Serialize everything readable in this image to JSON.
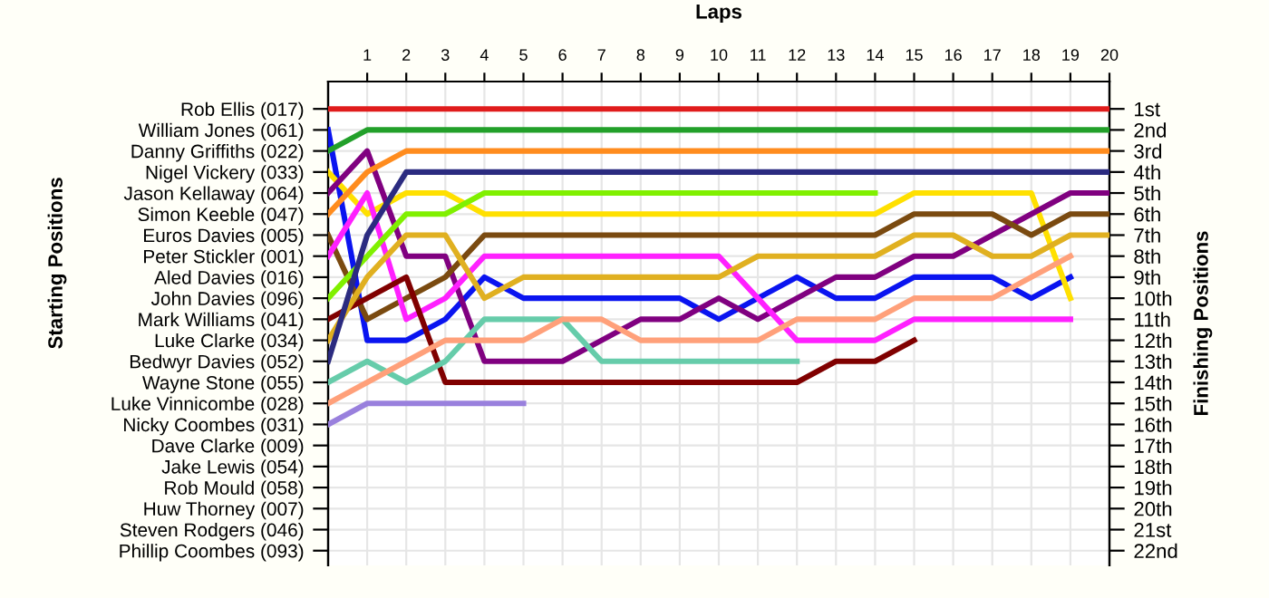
{
  "chart_data": {
    "type": "line",
    "xlabel": "Laps",
    "annotations": [
      "Starting Positions"
    ],
    "y2label": "Finishing Positions",
    "x": [
      0,
      1,
      2,
      3,
      4,
      5,
      6,
      7,
      8,
      9,
      10,
      11,
      12,
      13,
      14,
      15,
      16,
      17,
      18,
      19,
      20
    ],
    "xlim": [
      0,
      20
    ],
    "xticks": [
      1,
      2,
      3,
      4,
      5,
      6,
      7,
      8,
      9,
      10,
      11,
      12,
      13,
      14,
      15,
      16,
      17,
      18,
      19,
      20
    ],
    "y2lim": [
      22.7,
      -0.3
    ],
    "y_categories": [
      "Rob Ellis (017)",
      "William Jones (061)",
      "Danny Griffiths (022)",
      "Nigel Vickery (033)",
      "Jason Kellaway (064)",
      "Simon Keeble (047)",
      "Euros Davies (005)",
      "Peter Stickler (001)",
      "Aled Davies (016)",
      "John Davies (096)",
      "Mark Williams (041)",
      "Luke Clarke (034)",
      "Bedwyr Davies (052)",
      "Wayne Stone (055)",
      "Luke Vinnicombe (028)",
      "Nicky Coombes (031)",
      "Dave Clarke (009)",
      "Jake Lewis (054)",
      "Rob Mould (058)",
      "Huw Thorney (007)",
      "Steven Rodgers (046)",
      "Phillip Coombes (093)"
    ],
    "y2ticks": [
      {
        "value": 1,
        "label": "1st"
      },
      {
        "value": 2,
        "label": "2nd"
      },
      {
        "value": 3,
        "label": "3rd"
      },
      {
        "value": 4,
        "label": "4th"
      },
      {
        "value": 5,
        "label": "5th"
      },
      {
        "value": 6,
        "label": "6th"
      },
      {
        "value": 7,
        "label": "7th"
      },
      {
        "value": 8,
        "label": "8th"
      },
      {
        "value": 9,
        "label": "9th"
      },
      {
        "value": 10,
        "label": "10th"
      },
      {
        "value": 11,
        "label": "11th"
      },
      {
        "value": 12,
        "label": "12th"
      },
      {
        "value": 13,
        "label": "13th"
      },
      {
        "value": 14,
        "label": "14th"
      },
      {
        "value": 15,
        "label": "15th"
      },
      {
        "value": 16,
        "label": "16th"
      },
      {
        "value": 17,
        "label": "17th"
      },
      {
        "value": 18,
        "label": "18th"
      },
      {
        "value": 19,
        "label": "19th"
      },
      {
        "value": 20,
        "label": "20th"
      },
      {
        "value": 21,
        "label": "21st"
      },
      {
        "value": 22,
        "label": "22nd"
      }
    ],
    "grid": true,
    "marker": "none",
    "line_style": "solid",
    "legend": false,
    "series": [
      {
        "axis": "y2",
        "color": "#e01c1c",
        "values": [
          1,
          1,
          1,
          1,
          1,
          1,
          1,
          1,
          1,
          1,
          1,
          1,
          1,
          1,
          1,
          1,
          1,
          1,
          1,
          1,
          1
        ]
      },
      {
        "axis": "y2",
        "color": "#0a14f0",
        "values": [
          2,
          12,
          12,
          11,
          9,
          10,
          10,
          10,
          10,
          10,
          11,
          10,
          9,
          10,
          10,
          9,
          9,
          9,
          10,
          9,
          null
        ]
      },
      {
        "axis": "y2",
        "color": "#22a02a",
        "values": [
          3,
          2,
          2,
          2,
          2,
          2,
          2,
          2,
          2,
          2,
          2,
          2,
          2,
          2,
          2,
          2,
          2,
          2,
          2,
          2,
          2
        ]
      },
      {
        "axis": "y2",
        "color": "#ffe000",
        "values": [
          4,
          6,
          5,
          5,
          6,
          6,
          6,
          6,
          6,
          6,
          6,
          6,
          6,
          6,
          6,
          5,
          5,
          5,
          5,
          10,
          null
        ]
      },
      {
        "axis": "y2",
        "color": "#800080",
        "values": [
          5,
          3,
          8,
          8,
          13,
          13,
          13,
          12,
          11,
          11,
          10,
          11,
          10,
          9,
          9,
          8,
          8,
          7,
          6,
          5,
          5
        ]
      },
      {
        "axis": "y2",
        "color": "#ff8c1e",
        "values": [
          6,
          4,
          3,
          3,
          3,
          3,
          3,
          3,
          3,
          3,
          3,
          3,
          3,
          3,
          3,
          3,
          3,
          3,
          3,
          3,
          3
        ]
      },
      {
        "axis": "y2",
        "color": "#7a4a10",
        "values": [
          7,
          11,
          10,
          9,
          7,
          7,
          7,
          7,
          7,
          7,
          7,
          7,
          7,
          7,
          7,
          6,
          6,
          6,
          7,
          6,
          6
        ]
      },
      {
        "axis": "y2",
        "color": "#ff20ff",
        "values": [
          8,
          5,
          11,
          10,
          8,
          8,
          8,
          8,
          8,
          8,
          8,
          10,
          12,
          12,
          12,
          11,
          11,
          11,
          11,
          11,
          null
        ]
      },
      {
        "axis": "y2",
        "color": "#80f000",
        "values": [
          10,
          8,
          6,
          6,
          5,
          5,
          5,
          5,
          5,
          5,
          5,
          5,
          5,
          5,
          5,
          null,
          null,
          null,
          null,
          null,
          null
        ]
      },
      {
        "axis": "y2",
        "color": "#800000",
        "values": [
          11,
          10,
          9,
          14,
          14,
          14,
          14,
          14,
          14,
          14,
          14,
          14,
          14,
          13,
          13,
          12,
          null,
          null,
          null,
          null,
          null
        ]
      },
      {
        "axis": "y2",
        "color": "#e0b020",
        "values": [
          12,
          9,
          7,
          7,
          10,
          9,
          9,
          9,
          9,
          9,
          9,
          8,
          8,
          8,
          8,
          7,
          7,
          8,
          8,
          7,
          7
        ]
      },
      {
        "axis": "y2",
        "color": "#2b2b80",
        "values": [
          13,
          7,
          4,
          4,
          4,
          4,
          4,
          4,
          4,
          4,
          4,
          4,
          4,
          4,
          4,
          4,
          4,
          4,
          4,
          4,
          4
        ]
      },
      {
        "axis": "y2",
        "color": "#66ccaa",
        "values": [
          14,
          13,
          14,
          13,
          11,
          11,
          11,
          13,
          13,
          13,
          13,
          13,
          13,
          null,
          null,
          null,
          null,
          null,
          null,
          null,
          null
        ]
      },
      {
        "axis": "y2",
        "color": "#ffa07a",
        "values": [
          15,
          14,
          13,
          12,
          12,
          12,
          11,
          11,
          12,
          12,
          12,
          12,
          11,
          11,
          11,
          10,
          10,
          10,
          9,
          8,
          null
        ]
      },
      {
        "axis": "y2",
        "color": "#9980dd",
        "values": [
          16,
          15,
          15,
          15,
          15,
          15,
          null,
          null,
          null,
          null,
          null,
          null,
          null,
          null,
          null,
          null,
          null,
          null,
          null,
          null,
          null
        ]
      }
    ]
  }
}
